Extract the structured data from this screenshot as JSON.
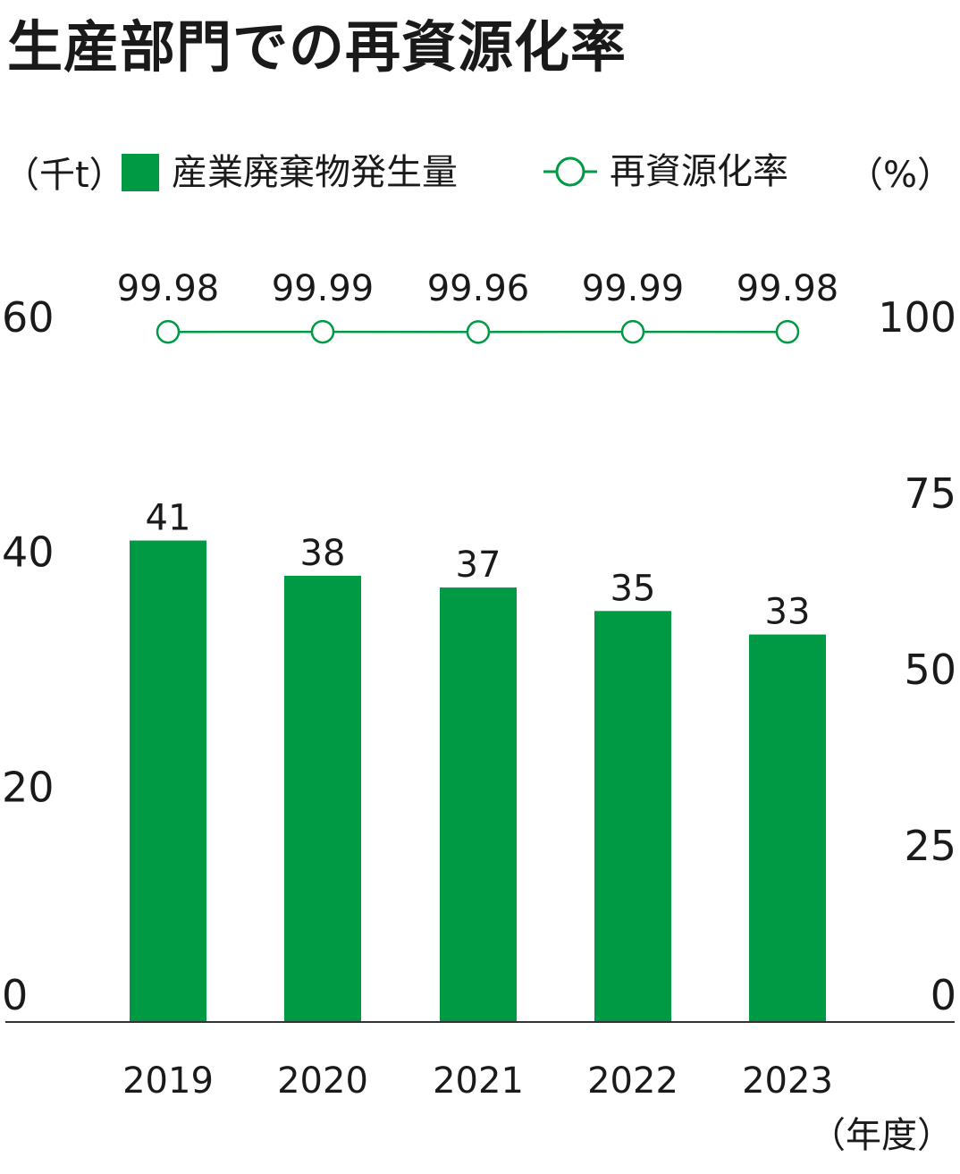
{
  "title": "生産部門での再資源化率",
  "colors": {
    "bar": "#009944",
    "line": "#009944",
    "axis": "#333333",
    "text": "#1a1a1a"
  },
  "chart_data": {
    "type": "bar",
    "title": "生産部門での再資源化率",
    "categories": [
      "2019",
      "2020",
      "2021",
      "2022",
      "2023"
    ],
    "series": [
      {
        "name": "産業廃棄物発生量",
        "type": "bar",
        "axis": "left",
        "values": [
          41,
          38,
          37,
          35,
          33
        ],
        "labels": [
          "41",
          "38",
          "37",
          "35",
          "33"
        ]
      },
      {
        "name": "再資源化率",
        "type": "line",
        "axis": "right",
        "values": [
          99.98,
          99.99,
          99.96,
          99.99,
          99.98
        ],
        "labels": [
          "99.98",
          "99.99",
          "99.96",
          "99.99",
          "99.98"
        ]
      }
    ],
    "y_left": {
      "unit": "（千t）",
      "ticks": [
        "0",
        "20",
        "40",
        "60"
      ],
      "ylim": [
        0,
        60
      ]
    },
    "y_right": {
      "unit": "（%）",
      "ticks": [
        "0",
        "25",
        "50",
        "75",
        "100"
      ],
      "ylim": [
        0,
        100
      ]
    },
    "x_unit": "（年度）",
    "grid": false,
    "legend": "top"
  }
}
